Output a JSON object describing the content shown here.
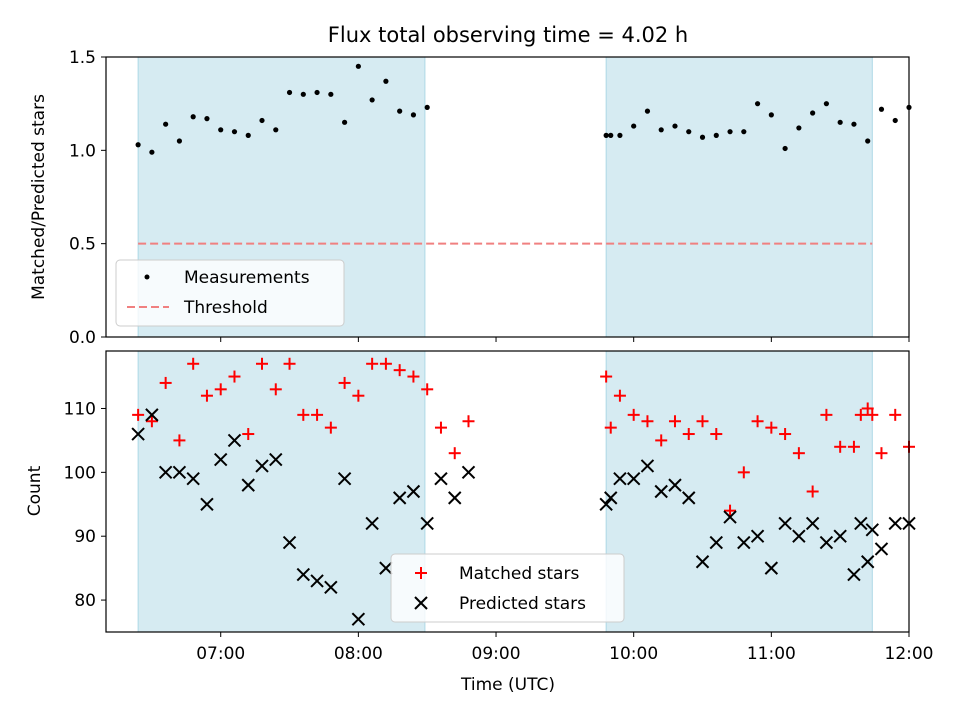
{
  "chart_data": {
    "type": "scatter",
    "title": "Flux total observing time = 4.02 h",
    "xlabel": "Time (UTC)",
    "x_ticks": [
      "07:00",
      "08:00",
      "09:00",
      "10:00",
      "11:00",
      "12:00"
    ],
    "xlim": [
      "06:10",
      "12:00"
    ],
    "shaded_intervals": [
      [
        "06:24",
        "08:29"
      ],
      [
        "09:48",
        "11:44"
      ]
    ],
    "colors": {
      "shade": "#add8e6",
      "measurements": "#000000",
      "threshold": "#f08080",
      "matched": "#ff0000",
      "predicted": "#000000"
    },
    "panels": [
      {
        "ylabel": "Matched/Predicted stars",
        "ylim": [
          0,
          1.5
        ],
        "y_ticks": [
          "0.0",
          "0.5",
          "1.0",
          "1.5"
        ],
        "legend": {
          "placement": "lower-left",
          "entries": [
            "Measurements",
            "Threshold"
          ]
        },
        "series": [
          {
            "name": "Measurements",
            "marker": "dot",
            "x": [
              "06:24",
              "06:30",
              "06:36",
              "06:42",
              "06:48",
              "06:54",
              "07:00",
              "07:06",
              "07:12",
              "07:18",
              "07:24",
              "07:30",
              "07:36",
              "07:42",
              "07:48",
              "07:54",
              "08:00",
              "08:06",
              "08:12",
              "08:18",
              "08:24",
              "08:30",
              "09:48",
              "09:50",
              "09:54",
              "10:00",
              "10:06",
              "10:12",
              "10:18",
              "10:24",
              "10:30",
              "10:36",
              "10:42",
              "10:48",
              "10:54",
              "11:00",
              "11:06",
              "11:12",
              "11:18",
              "11:24",
              "11:30",
              "11:36",
              "11:42",
              "11:48",
              "11:54",
              "12:00"
            ],
            "y": [
              1.03,
              0.99,
              1.14,
              1.05,
              1.18,
              1.17,
              1.11,
              1.1,
              1.08,
              1.16,
              1.11,
              1.31,
              1.3,
              1.31,
              1.3,
              1.15,
              1.45,
              1.27,
              1.37,
              1.21,
              1.19,
              1.23,
              1.08,
              1.08,
              1.08,
              1.13,
              1.21,
              1.11,
              1.13,
              1.1,
              1.07,
              1.08,
              1.1,
              1.1,
              1.25,
              1.19,
              1.01,
              1.12,
              1.2,
              1.25,
              1.15,
              1.14,
              1.05,
              1.22,
              1.16,
              1.23
            ]
          },
          {
            "name": "Threshold",
            "type": "line",
            "style": "dashed",
            "x": [
              "06:24",
              "11:44"
            ],
            "y": [
              0.5,
              0.5
            ]
          }
        ]
      },
      {
        "ylabel": "Count",
        "ylim": [
          75,
          119
        ],
        "y_ticks": [
          "80",
          "90",
          "100",
          "110"
        ],
        "legend": {
          "placement": "lower-center",
          "entries": [
            "Matched stars",
            "Predicted stars"
          ]
        },
        "series": [
          {
            "name": "Matched stars",
            "marker": "plus",
            "x": [
              "06:24",
              "06:30",
              "06:36",
              "06:42",
              "06:48",
              "06:54",
              "07:00",
              "07:06",
              "07:12",
              "07:18",
              "07:24",
              "07:30",
              "07:36",
              "07:42",
              "07:48",
              "07:54",
              "08:00",
              "08:06",
              "08:12",
              "08:18",
              "08:24",
              "08:30",
              "08:36",
              "08:42",
              "08:48",
              "09:48",
              "09:50",
              "09:54",
              "10:00",
              "10:06",
              "10:12",
              "10:18",
              "10:24",
              "10:30",
              "10:36",
              "10:42",
              "10:48",
              "10:54",
              "11:00",
              "11:06",
              "11:12",
              "11:18",
              "11:24",
              "11:30",
              "11:36",
              "11:42",
              "11:48",
              "11:54",
              "12:00",
              "11:39",
              "11:44"
            ],
            "y": [
              109,
              108,
              114,
              105,
              117,
              112,
              113,
              115,
              106,
              117,
              113,
              117,
              109,
              109,
              107,
              114,
              112,
              117,
              117,
              116,
              115,
              113,
              107,
              103,
              108,
              115,
              107,
              112,
              109,
              108,
              105,
              108,
              106,
              108,
              106,
              94,
              100,
              108,
              107,
              106,
              103,
              97,
              109,
              104,
              104,
              110,
              103,
              109,
              104,
              109,
              109
            ]
          },
          {
            "name": "Predicted stars",
            "marker": "x",
            "x": [
              "06:24",
              "06:30",
              "06:36",
              "06:42",
              "06:48",
              "06:54",
              "07:00",
              "07:06",
              "07:12",
              "07:18",
              "07:24",
              "07:30",
              "07:36",
              "07:42",
              "07:48",
              "07:54",
              "08:00",
              "08:06",
              "08:12",
              "08:18",
              "08:24",
              "08:30",
              "08:36",
              "08:42",
              "08:48",
              "09:48",
              "09:50",
              "09:54",
              "10:00",
              "10:06",
              "10:12",
              "10:18",
              "10:24",
              "10:30",
              "10:36",
              "10:42",
              "10:48",
              "10:54",
              "11:00",
              "11:06",
              "11:12",
              "11:18",
              "11:24",
              "11:30",
              "11:36",
              "11:42",
              "11:48",
              "11:54",
              "12:00",
              "11:39",
              "11:44"
            ],
            "y": [
              106,
              109,
              100,
              100,
              99,
              95,
              102,
              105,
              98,
              101,
              102,
              89,
              84,
              83,
              82,
              99,
              77,
              92,
              85,
              96,
              97,
              92,
              99,
              96,
              100,
              95,
              96,
              99,
              99,
              101,
              97,
              98,
              96,
              86,
              89,
              93,
              89,
              90,
              85,
              92,
              90,
              92,
              89,
              90,
              84,
              86,
              88,
              92,
              92,
              92,
              91
            ]
          }
        ]
      }
    ]
  }
}
